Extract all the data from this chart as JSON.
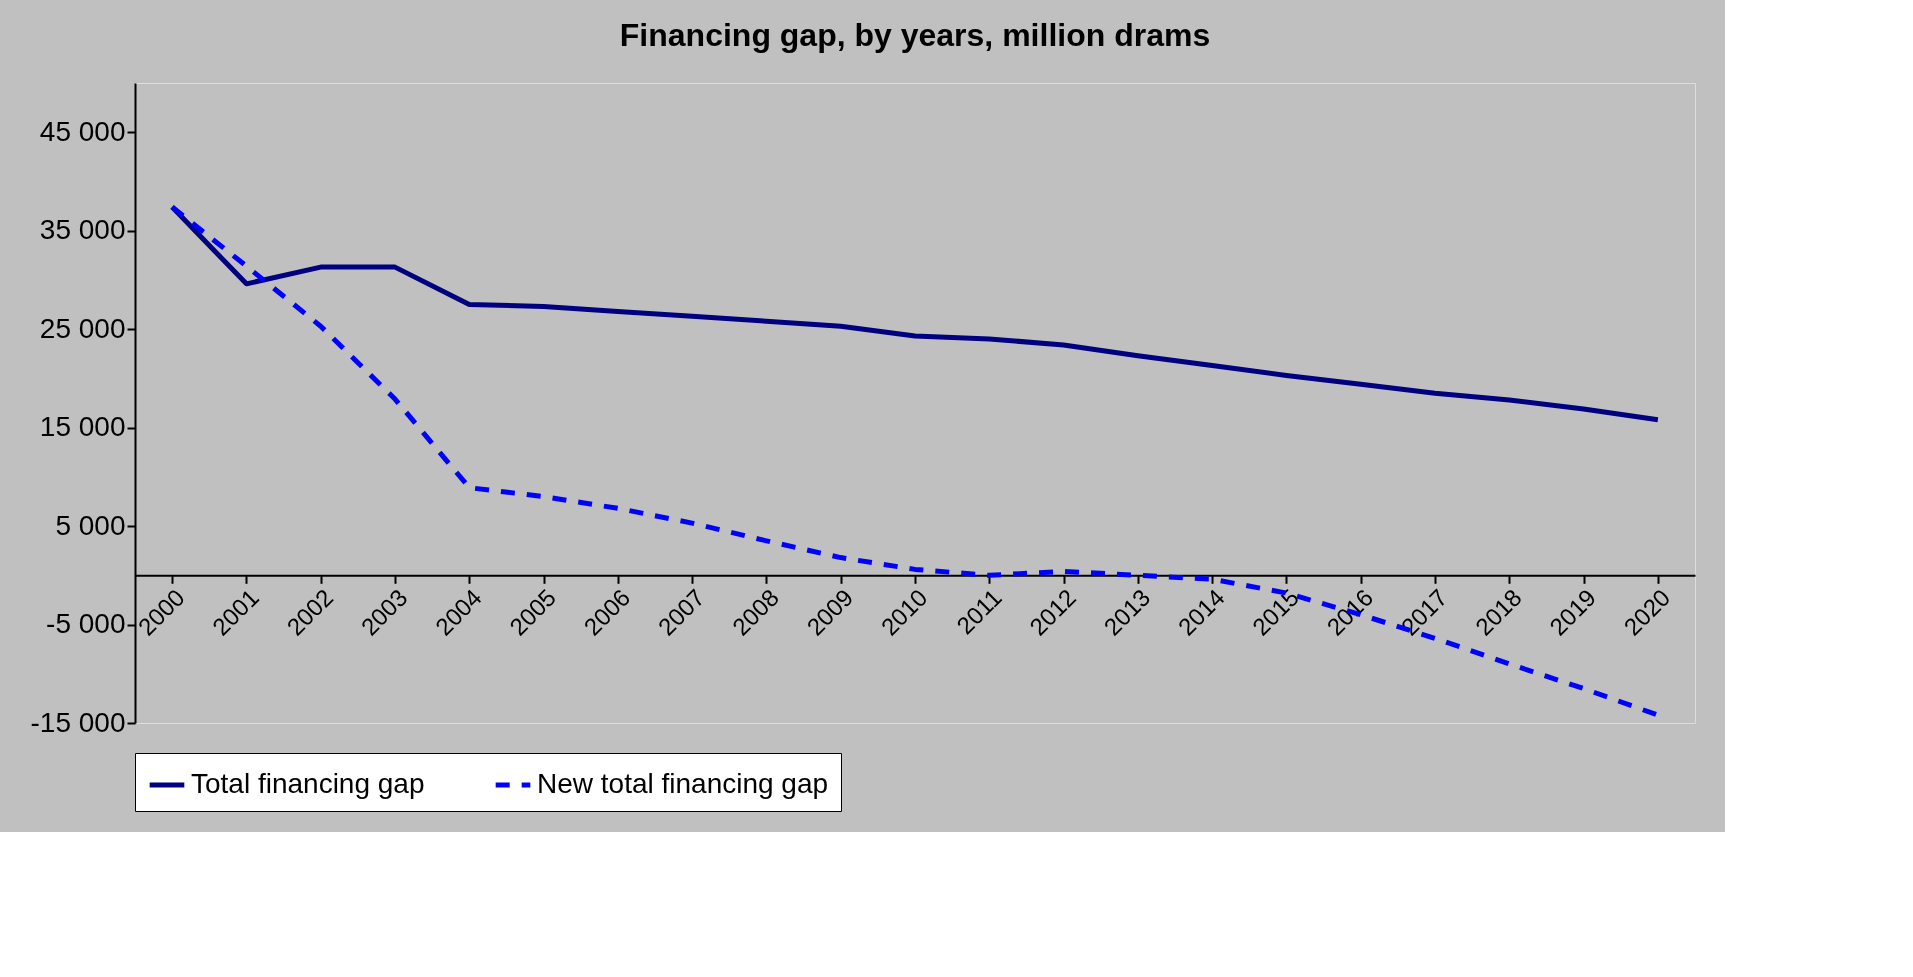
{
  "chart_data": {
    "type": "line",
    "title": "Financing gap, by years, million drams",
    "categories": [
      "2000",
      "2001",
      "2002",
      "2003",
      "2004",
      "2005",
      "2006",
      "2007",
      "2008",
      "2009",
      "2010",
      "2011",
      "2012",
      "2013",
      "2014",
      "2015",
      "2016",
      "2017",
      "2018",
      "2019",
      "2020"
    ],
    "series": [
      {
        "name": "Total financing gap",
        "color": "#000080",
        "line_style": "solid",
        "values": [
          37400,
          29600,
          31300,
          31300,
          27500,
          27300,
          26800,
          26300,
          25800,
          25300,
          24300,
          24000,
          23400,
          22300,
          21300,
          20300,
          19400,
          18500,
          17800,
          16900,
          15800
        ]
      },
      {
        "name": "New total financing gap",
        "color": "#0000ff",
        "line_style": "dashed",
        "values": [
          37400,
          31400,
          25300,
          17900,
          8900,
          8000,
          6800,
          5300,
          3500,
          1800,
          600,
          0,
          400,
          0,
          -400,
          -1800,
          -4000,
          -6400,
          -9000,
          -11500,
          -14200
        ]
      }
    ],
    "ylim": [
      -15000,
      50000
    ],
    "yticks": [
      {
        "value": -15000,
        "label": "-15 000"
      },
      {
        "value": -5000,
        "label": "-5 000"
      },
      {
        "value": 5000,
        "label": "5 000"
      },
      {
        "value": 15000,
        "label": "15 000"
      },
      {
        "value": 25000,
        "label": "25 000"
      },
      {
        "value": 35000,
        "label": "35 000"
      },
      {
        "value": 45000,
        "label": "45 000"
      }
    ],
    "grid": false,
    "legend": "bottom"
  }
}
